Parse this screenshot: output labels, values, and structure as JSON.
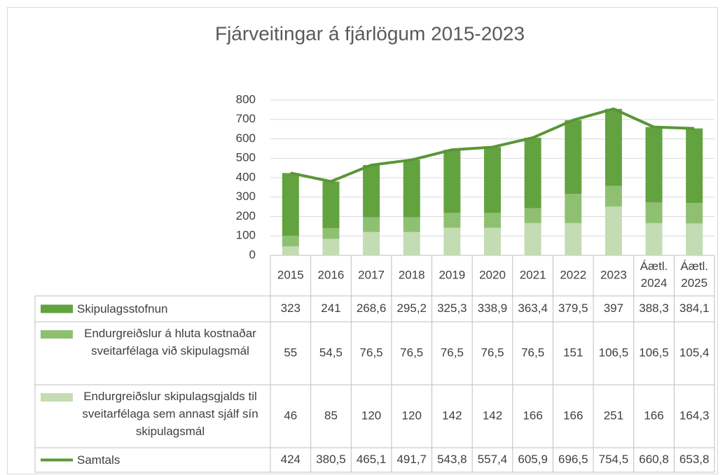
{
  "chart_data": {
    "type": "bar",
    "title": "Fjárveitingar á fjárlögum 2015-2023",
    "categories": [
      "2015",
      "2016",
      "2017",
      "2018",
      "2019",
      "2020",
      "2021",
      "2022",
      "2023",
      "Áætl. 2024",
      "Áætl. 2025"
    ],
    "stacked": true,
    "series": [
      {
        "name": "Skipulagsstofnun",
        "type": "bar",
        "color": "#62a33f",
        "values": [
          323,
          241,
          268.6,
          295.2,
          325.3,
          338.9,
          363.4,
          379.5,
          397,
          388.3,
          384.1
        ],
        "value_labels": [
          "323",
          "241",
          "268,6",
          "295,2",
          "325,3",
          "338,9",
          "363,4",
          "379,5",
          "397",
          "388,3",
          "384,1"
        ]
      },
      {
        "name": "Endurgreiðslur á hluta kostnaðar sveitarfélaga við skipulagsmál",
        "type": "bar",
        "color": "#8fc071",
        "values": [
          55,
          54.5,
          76.5,
          76.5,
          76.5,
          76.5,
          76.5,
          151,
          106.5,
          106.5,
          105.4
        ],
        "value_labels": [
          "55",
          "54,5",
          "76,5",
          "76,5",
          "76,5",
          "76,5",
          "76,5",
          "151",
          "106,5",
          "106,5",
          "105,4"
        ]
      },
      {
        "name": "Endurgreiðslur skipulagsgjalds til sveitarfélaga sem annast sjálf sín skipulagsmál",
        "type": "bar",
        "color": "#c3dcb3",
        "values": [
          46,
          85,
          120,
          120,
          142,
          142,
          166,
          166,
          251,
          166,
          164.3
        ],
        "value_labels": [
          "46",
          "85",
          "120",
          "120",
          "142",
          "142",
          "166",
          "166",
          "251",
          "166",
          "164,3"
        ]
      },
      {
        "name": "Samtals",
        "type": "line",
        "color": "#5a9637",
        "values": [
          424,
          380.5,
          465.1,
          491.7,
          543.8,
          557.4,
          605.9,
          696.5,
          754.5,
          660.8,
          653.8
        ],
        "value_labels": [
          "424",
          "380,5",
          "465,1",
          "491,7",
          "543,8",
          "557,4",
          "605,9",
          "696,5",
          "754,5",
          "660,8",
          "653,8"
        ]
      }
    ],
    "ylim": [
      0,
      800
    ],
    "yticks": [
      0,
      100,
      200,
      300,
      400,
      500,
      600,
      700,
      800
    ],
    "grid": true
  }
}
